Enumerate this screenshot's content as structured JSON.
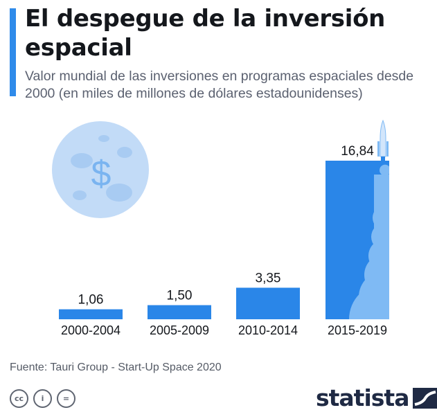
{
  "header": {
    "title": "El despegue de la inversión espacial",
    "subtitle": "Valor mundial de las inversiones en programas espaciales desde 2000 (en miles de millones de dólares estadounidenses)"
  },
  "colors": {
    "accent": "#2f8bea",
    "bar": "#2a86e8",
    "cloud": "#7fbaf4",
    "moon": "#c2dbf7",
    "text": "#14171c"
  },
  "chart_data": {
    "type": "bar",
    "categories": [
      "2000-2004",
      "2005-2009",
      "2010-2014",
      "2015-2019"
    ],
    "values": [
      1.06,
      1.5,
      3.35,
      16.84
    ],
    "value_labels": [
      "1,06",
      "1,50",
      "3,35",
      "16,84"
    ],
    "title": "El despegue de la inversión espacial",
    "ylim": [
      0,
      16.84
    ],
    "grid": false,
    "legend": "none"
  },
  "decorations": {
    "moon_symbol": "$",
    "icons": [
      "moon-icon",
      "rocket-icon",
      "cloud-icon"
    ]
  },
  "footer": {
    "source": "Fuente: Tauri Group - Start-Up Space 2020",
    "license_icons": [
      "cc-icon",
      "by-icon",
      "nd-icon"
    ],
    "license_labels": [
      "cc",
      "i",
      "="
    ],
    "brand": "statista"
  }
}
